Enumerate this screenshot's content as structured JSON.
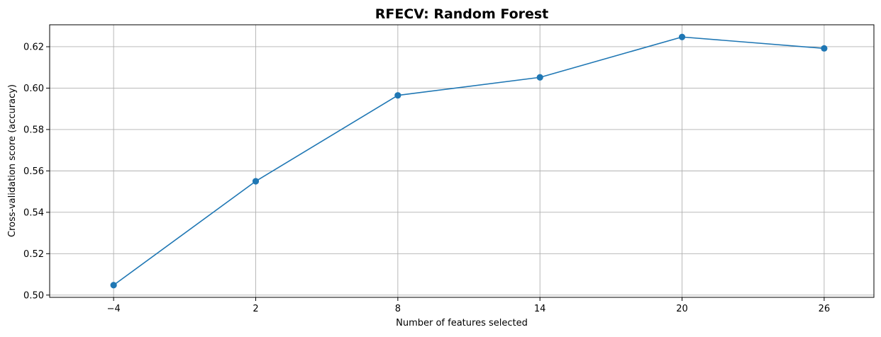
{
  "chart_data": {
    "type": "line",
    "title": "RFECV: Random Forest",
    "xlabel": "Number of features selected",
    "ylabel": "Cross-validation score (accuracy)",
    "x": [
      -4,
      2,
      8,
      14,
      20,
      26
    ],
    "series": [
      {
        "values": [
          0.5048,
          0.555,
          0.5965,
          0.6052,
          0.6247,
          0.6192
        ],
        "color": "#1f77b4",
        "marker": "circle"
      }
    ],
    "xticks": [
      -4,
      2,
      8,
      14,
      20,
      26
    ],
    "xtick_labels": [
      "−4",
      "2",
      "8",
      "14",
      "20",
      "26"
    ],
    "yticks": [
      0.5,
      0.52,
      0.54,
      0.56,
      0.58,
      0.6,
      0.62
    ],
    "ytick_labels": [
      "0.50",
      "0.52",
      "0.54",
      "0.56",
      "0.58",
      "0.60",
      "0.62"
    ],
    "xlim": [
      -6.7,
      28.1
    ],
    "ylim": [
      0.4989,
      0.6306
    ],
    "grid": true,
    "grid_color": "#b0b0b0",
    "axis_color": "#000000"
  }
}
